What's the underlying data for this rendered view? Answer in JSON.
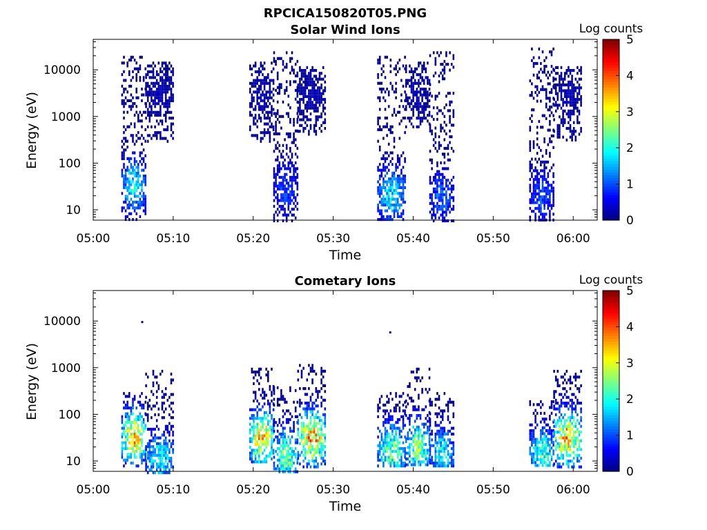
{
  "figure_title": "RPCICA150820T05.PNG",
  "colors": {
    "colormap": [
      "#00007f",
      "#0000ff",
      "#007fff",
      "#00ffff",
      "#7fff7f",
      "#ffff00",
      "#ff7f00",
      "#ff0000",
      "#7f0000"
    ],
    "axes": "#000000",
    "background": "#ffffff"
  },
  "chart_data": [
    {
      "type": "heatmap",
      "title": "Solar Wind Ions",
      "xlabel": "Time",
      "ylabel": "Energy (eV)",
      "xlim": [
        "05:00",
        "06:03"
      ],
      "ylim": [
        6,
        45000
      ],
      "yscale": "log",
      "x_ticks": [
        "05:00",
        "05:10",
        "05:20",
        "05:30",
        "05:40",
        "05:50",
        "06:00"
      ],
      "y_ticks": [
        10,
        100,
        1000,
        10000
      ],
      "y_tick_labels": [
        "10",
        "100",
        "1000",
        "10000"
      ],
      "colorbar": {
        "label": "Log counts",
        "min": 0,
        "max": 5,
        "ticks": [
          0,
          1,
          2,
          3,
          4,
          5
        ]
      },
      "bursts": [
        {
          "start": "05:03.5",
          "end": "05:06.5",
          "min_energy": 6,
          "max_energy": 20000,
          "peak": 2.0,
          "peak_energy": 35
        },
        {
          "start": "05:06.5",
          "end": "05:10",
          "min_energy": 300,
          "max_energy": 15000,
          "peak": 0.3,
          "peak_energy": 3000
        },
        {
          "start": "05:19.5",
          "end": "05:22.5",
          "min_energy": 300,
          "max_energy": 15000,
          "peak": 0.3,
          "peak_energy": 3000
        },
        {
          "start": "05:22.5",
          "end": "05:25.5",
          "min_energy": 6,
          "max_energy": 25000,
          "peak": 1.0,
          "peak_energy": 30
        },
        {
          "start": "05:25.5",
          "end": "05:29",
          "min_energy": 400,
          "max_energy": 12000,
          "peak": 0.3,
          "peak_energy": 3000
        },
        {
          "start": "05:35.5",
          "end": "05:39",
          "min_energy": 6,
          "max_energy": 20000,
          "peak": 1.9,
          "peak_energy": 22
        },
        {
          "start": "05:39",
          "end": "05:42",
          "min_energy": 600,
          "max_energy": 15000,
          "peak": 0.3,
          "peak_energy": 3000
        },
        {
          "start": "05:42",
          "end": "05:45",
          "min_energy": 6,
          "max_energy": 25000,
          "peak": 1.2,
          "peak_energy": 20
        },
        {
          "start": "05:54.5",
          "end": "05:57.5",
          "min_energy": 6,
          "max_energy": 30000,
          "peak": 1.1,
          "peak_energy": 20
        },
        {
          "start": "05:57.5",
          "end": "06:01",
          "min_energy": 300,
          "max_energy": 12000,
          "peak": 0.3,
          "peak_energy": 3000
        }
      ]
    },
    {
      "type": "heatmap",
      "title": "Cometary Ions",
      "xlabel": "Time",
      "ylabel": "Energy (eV)",
      "xlim": [
        "05:00",
        "06:03"
      ],
      "ylim": [
        6,
        45000
      ],
      "yscale": "log",
      "x_ticks": [
        "05:00",
        "05:10",
        "05:20",
        "05:30",
        "05:40",
        "05:50",
        "06:00"
      ],
      "y_ticks": [
        10,
        100,
        1000,
        10000
      ],
      "y_tick_labels": [
        "10",
        "100",
        "1000",
        "10000"
      ],
      "colorbar": {
        "label": "Log counts",
        "min": 0,
        "max": 5,
        "ticks": [
          0,
          1,
          2,
          3,
          4,
          5
        ]
      },
      "bursts": [
        {
          "start": "05:03.5",
          "end": "05:06.5",
          "min_energy": 8,
          "max_energy": 300,
          "peak": 3.6,
          "peak_energy": 33
        },
        {
          "start": "05:06.5",
          "end": "05:10",
          "min_energy": 6,
          "max_energy": 900,
          "peak": 2.0,
          "peak_energy": 12
        },
        {
          "start": "05:19.5",
          "end": "05:22.5",
          "min_energy": 10,
          "max_energy": 1000,
          "peak": 3.6,
          "peak_energy": 33
        },
        {
          "start": "05:22.5",
          "end": "05:25.5",
          "min_energy": 6,
          "max_energy": 400,
          "peak": 2.6,
          "peak_energy": 14
        },
        {
          "start": "05:25.5",
          "end": "05:29",
          "min_energy": 8,
          "max_energy": 1200,
          "peak": 3.8,
          "peak_energy": 33
        },
        {
          "start": "05:35.5",
          "end": "05:39",
          "min_energy": 8,
          "max_energy": 300,
          "peak": 2.6,
          "peak_energy": 18
        },
        {
          "start": "05:39",
          "end": "05:42",
          "min_energy": 8,
          "max_energy": 1000,
          "peak": 2.8,
          "peak_energy": 22
        },
        {
          "start": "05:42",
          "end": "05:45",
          "min_energy": 8,
          "max_energy": 300,
          "peak": 2.0,
          "peak_energy": 15
        },
        {
          "start": "05:54.5",
          "end": "05:57.5",
          "min_energy": 8,
          "max_energy": 200,
          "peak": 2.3,
          "peak_energy": 15
        },
        {
          "start": "05:57.5",
          "end": "06:01",
          "min_energy": 8,
          "max_energy": 900,
          "peak": 3.7,
          "peak_energy": 33
        }
      ],
      "isolated_points": [
        {
          "time": "05:06",
          "energy": 10000,
          "value": 0.1
        },
        {
          "time": "05:37",
          "energy": 6000,
          "value": 0.1
        }
      ]
    }
  ]
}
